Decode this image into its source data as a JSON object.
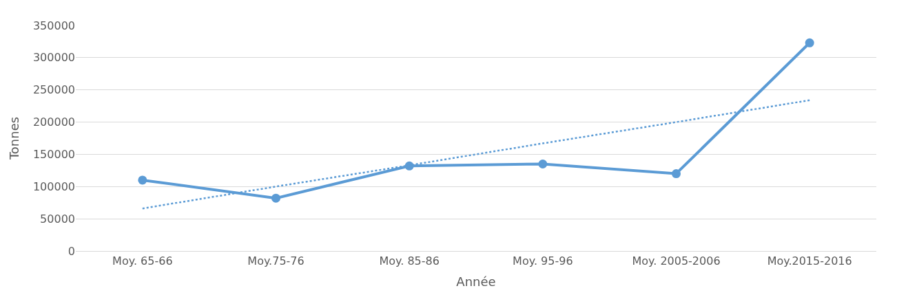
{
  "chart_data": {
    "type": "line",
    "xlabel": "Année",
    "ylabel": "Tonnes",
    "categories": [
      "Moy. 65-66",
      "Moy.75-76",
      "Moy. 85-86",
      "Moy. 95-96",
      "Moy. 2005-2006",
      "Moy.2015-2016"
    ],
    "series": [
      {
        "color": "#5b9bd5",
        "values": [
          110000,
          82000,
          132000,
          135000,
          120000,
          323000
        ],
        "marker": "circle",
        "line_style": "solid"
      },
      {
        "type": "line",
        "color": "#5b9bd5",
        "values": [
          66000,
          100000,
          133000,
          167000,
          200000,
          234000
        ],
        "marker": "none",
        "line_style": "dotted"
      }
    ],
    "ylim": [
      0,
      350000
    ],
    "yticks": [
      0,
      50000,
      100000,
      150000,
      200000,
      250000,
      300000,
      350000
    ],
    "grid": "y"
  }
}
